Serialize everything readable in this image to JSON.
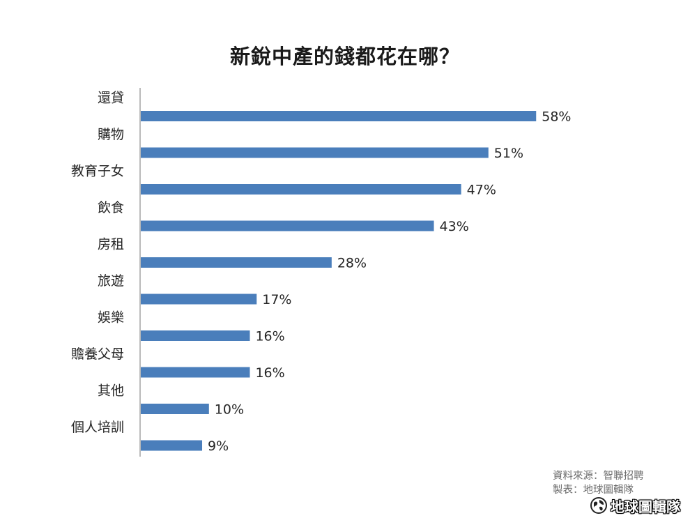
{
  "chart_data": {
    "type": "bar",
    "orientation": "horizontal",
    "title": "新銳中產的錢都花在哪？",
    "categories": [
      "還貸",
      "購物",
      "教育子女",
      "飲食",
      "房租",
      "旅遊",
      "娛樂",
      "贍養父母",
      "其他",
      "個人培訓"
    ],
    "values": [
      58,
      51,
      47,
      43,
      28,
      17,
      16,
      16,
      10,
      9
    ],
    "value_labels": [
      "58%",
      "51%",
      "47%",
      "43%",
      "28%",
      "17%",
      "16%",
      "16%",
      "10%",
      "9%"
    ],
    "unit": "%",
    "xlim": [
      0,
      60
    ],
    "grid": false,
    "legend": "none",
    "bar_color": "#4a7ebb"
  },
  "footer": {
    "source_line": "資料來源：智聯招聘",
    "maker_line": "製表：地球圖輯隊",
    "logo_text": "地球圖輯隊"
  },
  "icons": {
    "logo_icon": "globe-icon"
  }
}
